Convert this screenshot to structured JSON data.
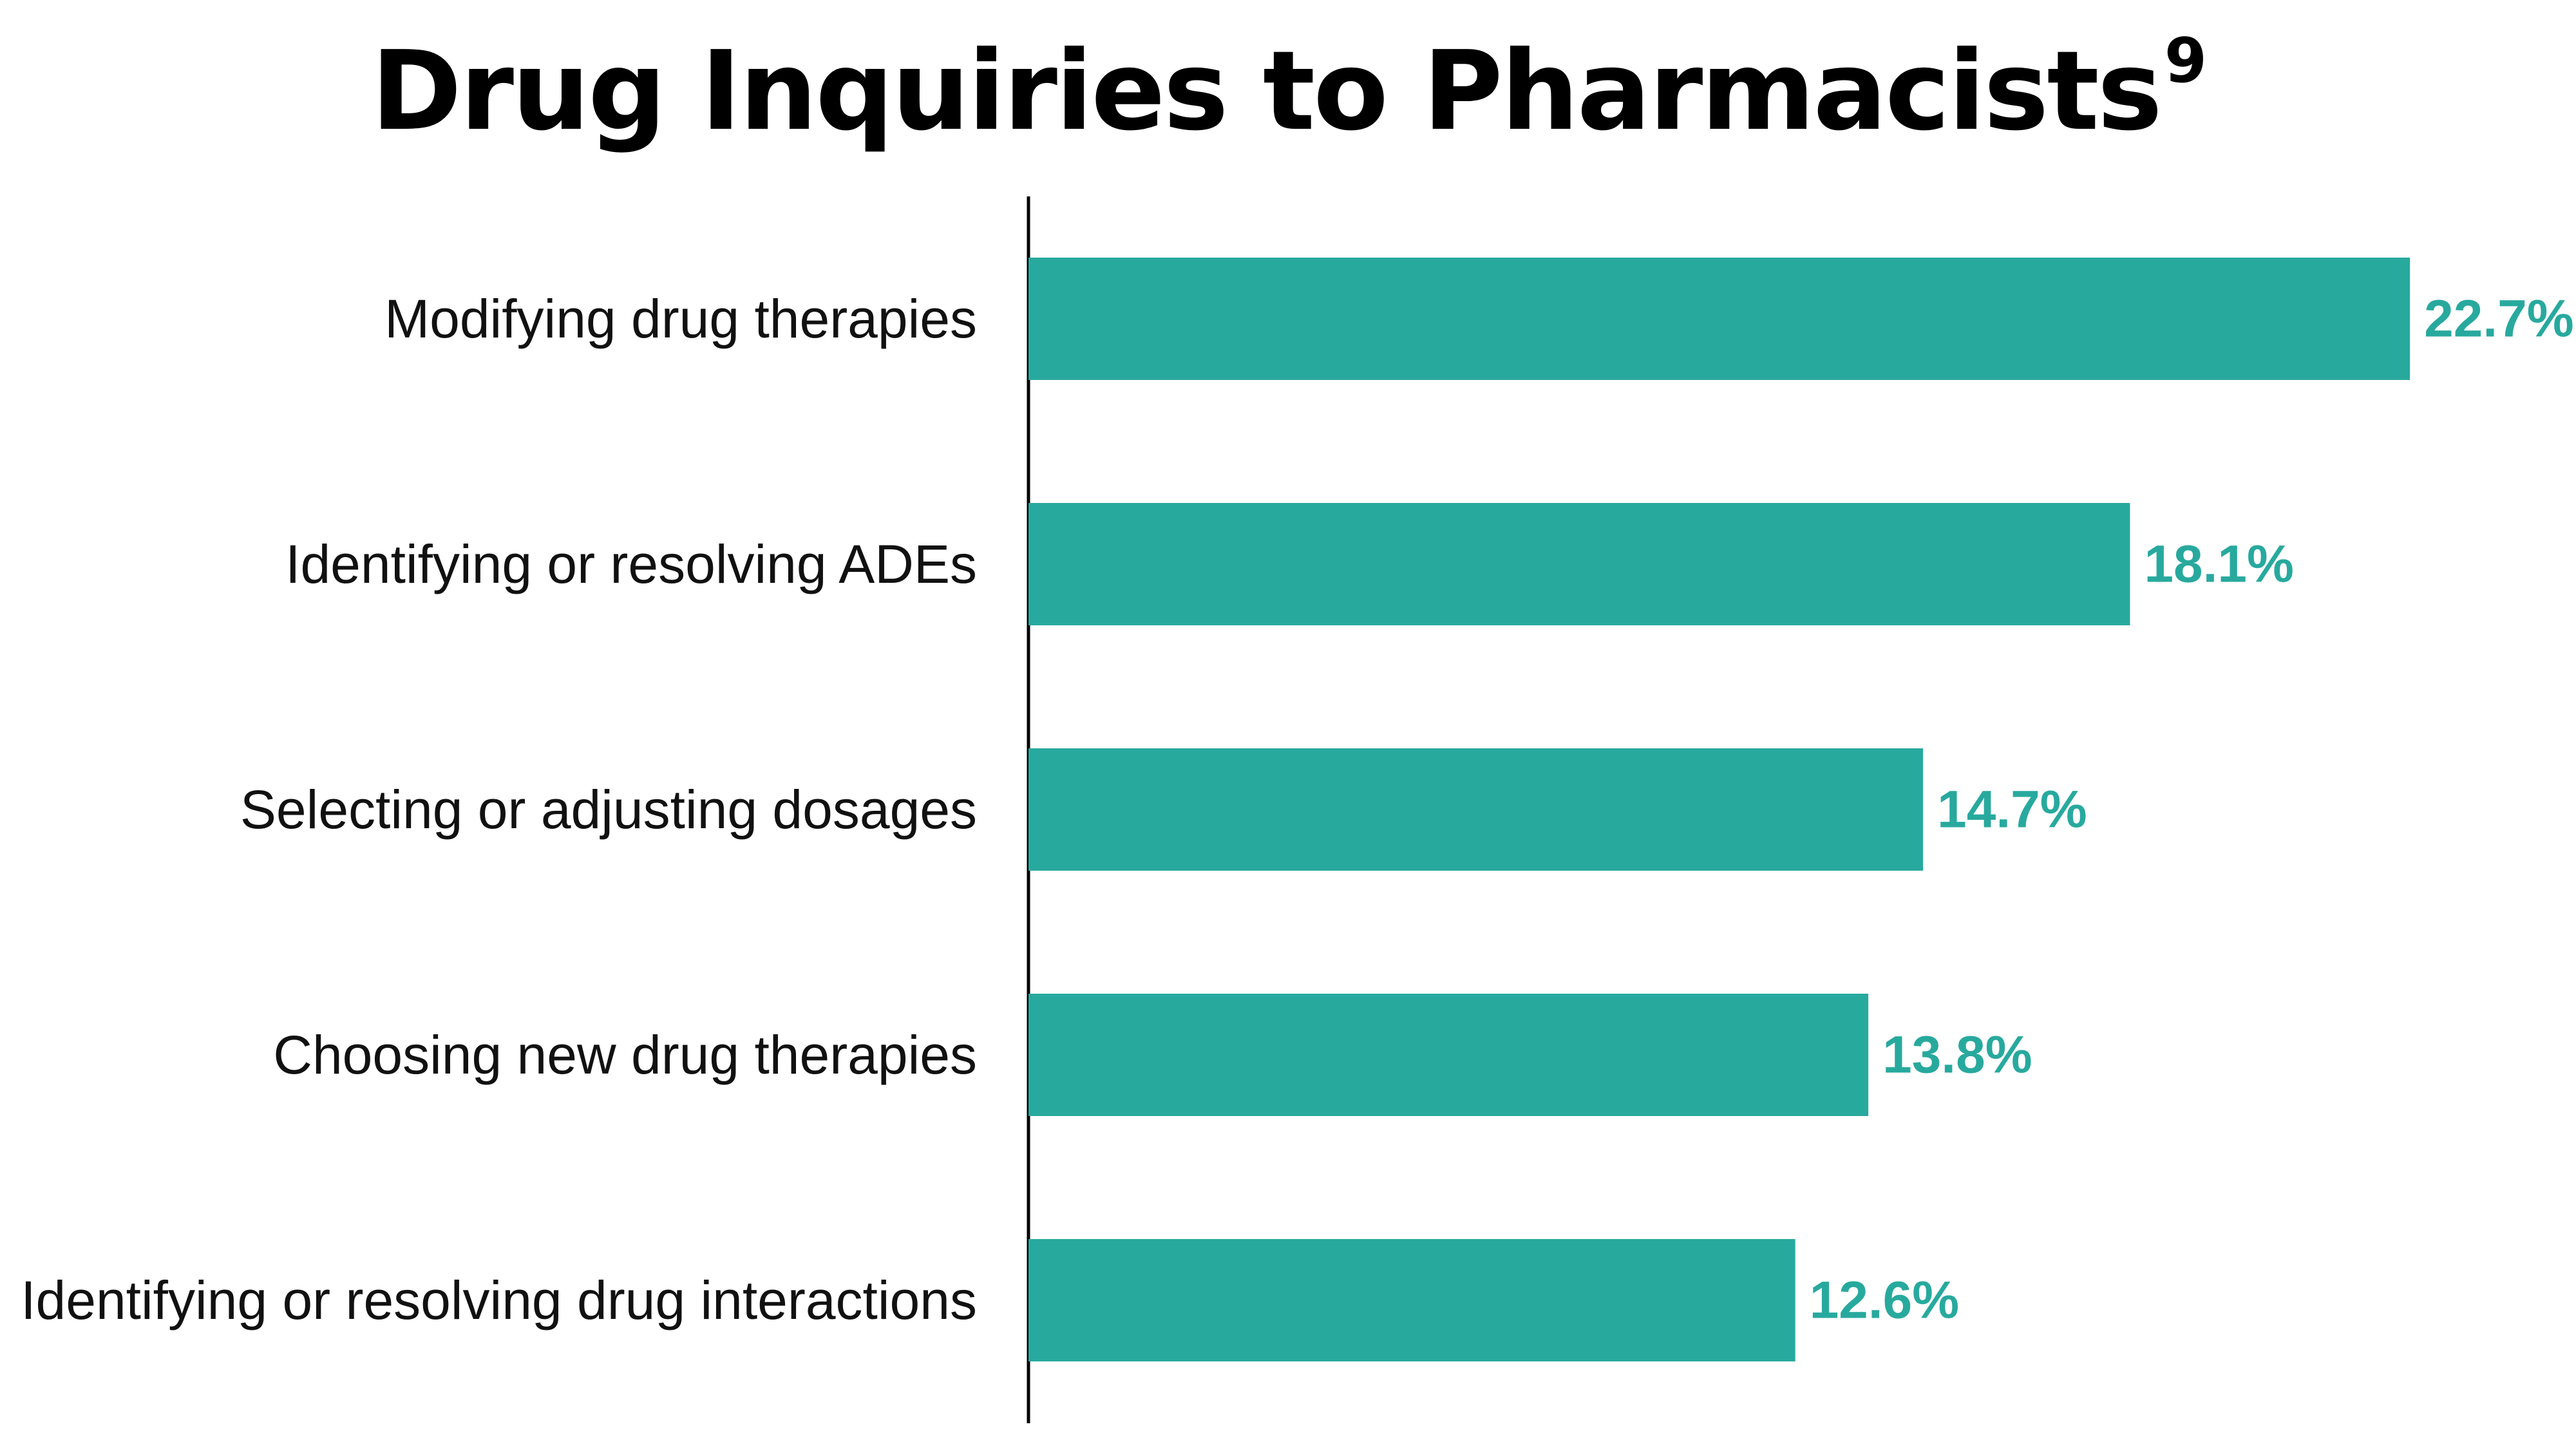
{
  "title": {
    "text": "Drug Inquiries to Pharmacists",
    "superscript": "9"
  },
  "colors": {
    "bar": "#28a99e",
    "value_label": "#28a99e",
    "axis": "#000000"
  },
  "chart_data": {
    "type": "bar",
    "orientation": "horizontal",
    "title": "Drug Inquiries to Pharmacists",
    "categories": [
      "Modifying drug therapies",
      "Identifying or resolving ADEs",
      "Selecting or adjusting dosages",
      "Choosing new drug therapies",
      "Identifying or resolving drug interactions"
    ],
    "values": [
      22.7,
      18.1,
      14.7,
      13.8,
      12.6
    ],
    "value_labels": [
      "22.7%",
      "18.1%",
      "14.7%",
      "13.8%",
      "12.6%"
    ],
    "xlabel": "",
    "ylabel": "",
    "grid": false,
    "legend": "none"
  }
}
